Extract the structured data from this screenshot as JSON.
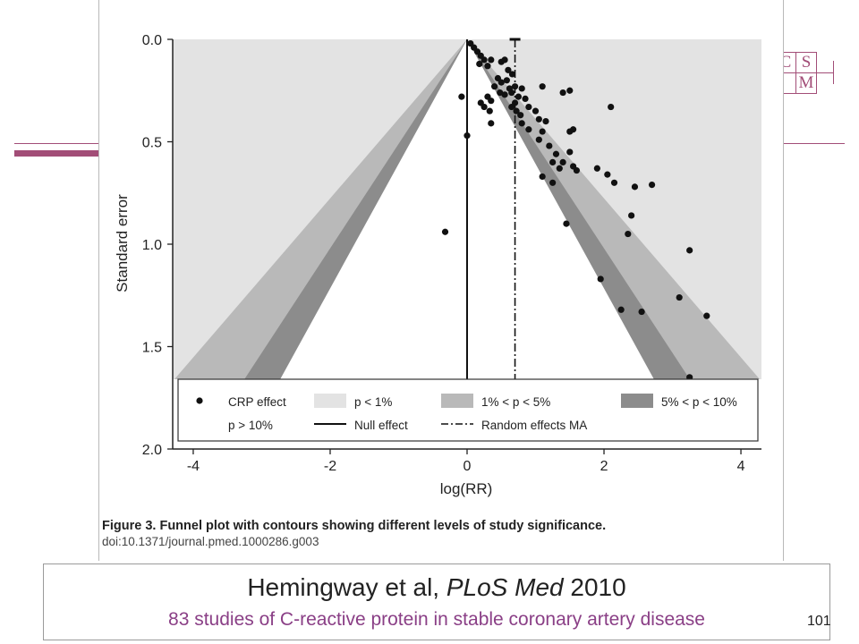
{
  "slide": {
    "logo": [
      "C",
      "S",
      "",
      "M"
    ],
    "citation": {
      "authors": "Hemingway et al, ",
      "journal": "PLoS Med",
      "year": " 2010"
    },
    "subtitle": "83 studies of C-reactive protein in stable coronary artery disease",
    "page_number": "101"
  },
  "figure": {
    "caption_bold": "Figure 3. Funnel plot with contours showing different levels of study significance.",
    "doi": "doi:10.1371/journal.pmed.1000286.g003"
  },
  "chart_data": {
    "type": "scatter",
    "xlabel": "log(RR)",
    "ylabel": "Standard error",
    "xlim": [
      -4.3,
      4.3
    ],
    "ylim": [
      2.0,
      0.0
    ],
    "y_reversed": true,
    "xticks": [
      "-4",
      "-2",
      "0",
      "2",
      "4"
    ],
    "xtick_values": [
      -4,
      -2,
      0,
      2,
      4
    ],
    "yticks": [
      "0.0",
      "0.5",
      "1.0",
      "1.5",
      "2.0"
    ],
    "ytick_values": [
      0.0,
      0.5,
      1.0,
      1.5,
      2.0
    ],
    "null_effect": 0,
    "random_effects_ma": 0.7,
    "contours": [
      {
        "label": "p > 10%",
        "z": 1.645,
        "color": "#ffffff"
      },
      {
        "label": "5% < p < 10%",
        "z": 1.96,
        "color": "#8c8c8c"
      },
      {
        "label": "1% < p < 5%",
        "z": 2.576,
        "color": "#b9b9b9"
      },
      {
        "label": "p < 1%",
        "z": null,
        "color": "#e3e3e3"
      }
    ],
    "legend": {
      "placement": "bottom",
      "items": [
        {
          "label": "CRP effect",
          "kind": "marker"
        },
        {
          "label": "p < 1%",
          "kind": "swatch",
          "color": "#e3e3e3"
        },
        {
          "label": "1% < p < 5%",
          "kind": "swatch",
          "color": "#b9b9b9"
        },
        {
          "label": "5% < p < 10%",
          "kind": "swatch",
          "color": "#8c8c8c"
        },
        {
          "label": "p > 10%",
          "kind": "swatch",
          "color": "#ffffff"
        },
        {
          "label": "Null effect",
          "kind": "solid-line"
        },
        {
          "label": "Random effects MA",
          "kind": "dashdot-line"
        }
      ]
    },
    "series": [
      {
        "name": "CRP effect",
        "points": [
          [
            0.05,
            0.02
          ],
          [
            0.1,
            0.04
          ],
          [
            0.15,
            0.06
          ],
          [
            0.2,
            0.08
          ],
          [
            0.25,
            0.1
          ],
          [
            0.35,
            0.1
          ],
          [
            0.5,
            0.11
          ],
          [
            0.55,
            0.1
          ],
          [
            0.18,
            0.12
          ],
          [
            0.3,
            0.13
          ],
          [
            0.6,
            0.15
          ],
          [
            0.66,
            0.17
          ],
          [
            0.45,
            0.19
          ],
          [
            0.5,
            0.21
          ],
          [
            0.58,
            0.2
          ],
          [
            0.62,
            0.24
          ],
          [
            0.7,
            0.23
          ],
          [
            0.8,
            0.24
          ],
          [
            0.4,
            0.23
          ],
          [
            0.48,
            0.26
          ],
          [
            0.55,
            0.27
          ],
          [
            0.65,
            0.26
          ],
          [
            0.75,
            0.28
          ],
          [
            0.85,
            0.29
          ],
          [
            1.1,
            0.23
          ],
          [
            0.3,
            0.28
          ],
          [
            0.2,
            0.31
          ],
          [
            0.25,
            0.33
          ],
          [
            0.33,
            0.35
          ],
          [
            -0.08,
            0.28
          ],
          [
            0.35,
            0.3
          ],
          [
            0.7,
            0.31
          ],
          [
            0.65,
            0.33
          ],
          [
            0.72,
            0.35
          ],
          [
            0.78,
            0.37
          ],
          [
            0.9,
            0.33
          ],
          [
            1.0,
            0.35
          ],
          [
            1.05,
            0.39
          ],
          [
            1.15,
            0.4
          ],
          [
            1.4,
            0.26
          ],
          [
            1.5,
            0.25
          ],
          [
            0.35,
            0.41
          ],
          [
            0.8,
            0.41
          ],
          [
            0.9,
            0.44
          ],
          [
            1.1,
            0.45
          ],
          [
            1.5,
            0.45
          ],
          [
            1.55,
            0.44
          ],
          [
            0.0,
            0.47
          ],
          [
            1.05,
            0.49
          ],
          [
            1.2,
            0.52
          ],
          [
            1.3,
            0.56
          ],
          [
            1.5,
            0.55
          ],
          [
            1.25,
            0.6
          ],
          [
            1.4,
            0.6
          ],
          [
            1.6,
            0.64
          ],
          [
            1.55,
            0.62
          ],
          [
            1.35,
            0.63
          ],
          [
            1.1,
            0.67
          ],
          [
            1.25,
            0.7
          ],
          [
            1.9,
            0.63
          ],
          [
            2.05,
            0.66
          ],
          [
            2.15,
            0.7
          ],
          [
            2.45,
            0.72
          ],
          [
            2.7,
            0.71
          ],
          [
            2.1,
            0.33
          ],
          [
            2.4,
            0.86
          ],
          [
            1.45,
            0.9
          ],
          [
            2.35,
            0.95
          ],
          [
            -0.32,
            0.94
          ],
          [
            3.25,
            1.03
          ],
          [
            1.95,
            1.17
          ],
          [
            3.1,
            1.26
          ],
          [
            2.25,
            1.32
          ],
          [
            2.55,
            1.33
          ],
          [
            3.5,
            1.35
          ],
          [
            3.25,
            1.65
          ]
        ]
      }
    ]
  }
}
